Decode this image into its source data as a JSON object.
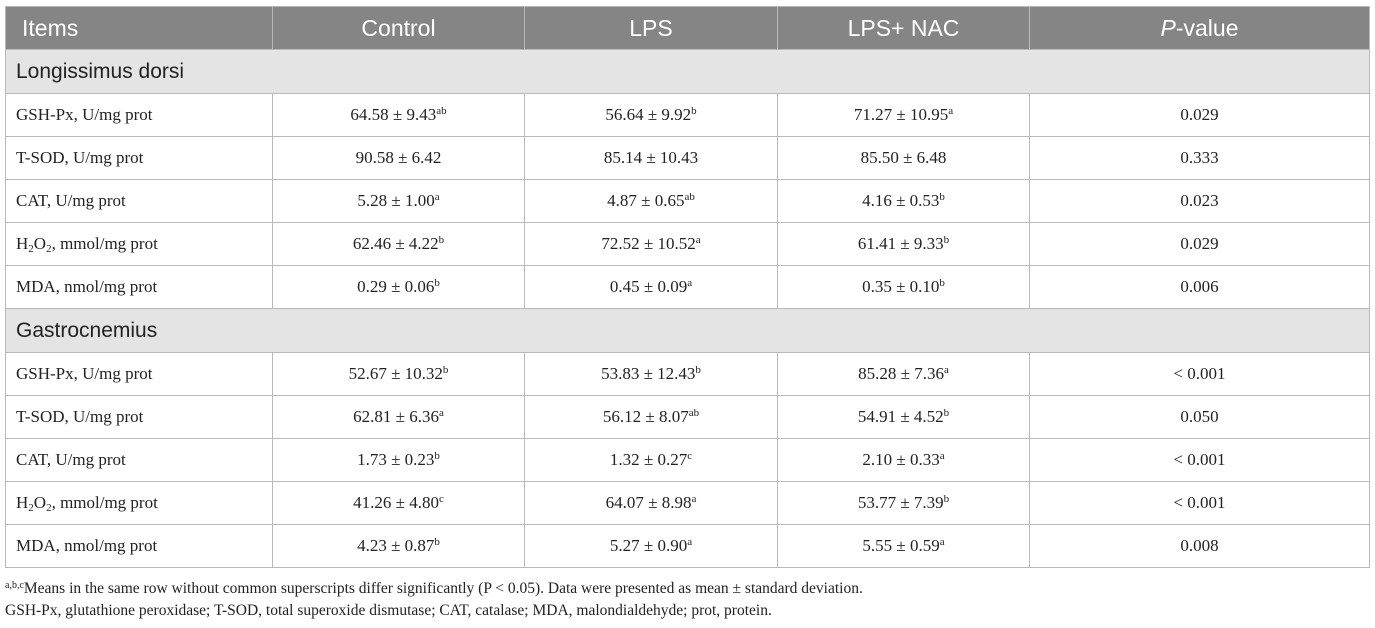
{
  "table": {
    "headers": [
      "Items",
      "Control",
      "LPS",
      "LPS+ NAC",
      "P-value"
    ],
    "groups": [
      {
        "name": "Longissimus dorsi",
        "rows": [
          {
            "item": "GSH-Px, U/mg prot",
            "control": "64.58 ± 9.43",
            "control_sup": "ab",
            "lps": "56.64 ± 9.92",
            "lps_sup": "b",
            "nac": "71.27 ± 10.95",
            "nac_sup": "a",
            "p": "0.029"
          },
          {
            "item": "T-SOD, U/mg prot",
            "control": "90.58 ± 6.42",
            "control_sup": "",
            "lps": "85.14 ± 10.43",
            "lps_sup": "",
            "nac": "85.50 ± 6.48",
            "nac_sup": "",
            "p": "0.333"
          },
          {
            "item": "CAT, U/mg prot",
            "control": "5.28 ± 1.00",
            "control_sup": "a",
            "lps": "4.87 ± 0.65",
            "lps_sup": "ab",
            "nac": "4.16 ± 0.53",
            "nac_sup": "b",
            "p": "0.023"
          },
          {
            "item": "H2O2, mmol/mg prot",
            "item_pre": "H",
            "item_sub1": "2",
            "item_mid": "O",
            "item_sub2": "2",
            "item_post": ", mmol/mg prot",
            "control": "62.46 ± 4.22",
            "control_sup": "b",
            "lps": "72.52 ± 10.52",
            "lps_sup": "a",
            "nac": "61.41 ± 9.33",
            "nac_sup": "b",
            "p": "0.029"
          },
          {
            "item": "MDA, nmol/mg prot",
            "control": "0.29 ± 0.06",
            "control_sup": "b",
            "lps": "0.45 ± 0.09",
            "lps_sup": "a",
            "nac": "0.35 ± 0.10",
            "nac_sup": "b",
            "p": "0.006"
          }
        ]
      },
      {
        "name": "Gastrocnemius",
        "rows": [
          {
            "item": "GSH-Px, U/mg prot",
            "control": "52.67 ± 10.32",
            "control_sup": "b",
            "lps": "53.83 ± 12.43",
            "lps_sup": "b",
            "nac": "85.28 ± 7.36",
            "nac_sup": "a",
            "p": "< 0.001"
          },
          {
            "item": "T-SOD, U/mg prot",
            "control": "62.81 ± 6.36",
            "control_sup": "a",
            "lps": "56.12 ± 8.07",
            "lps_sup": "ab",
            "nac": "54.91 ± 4.52",
            "nac_sup": "b",
            "p": "0.050"
          },
          {
            "item": "CAT, U/mg prot",
            "control": "1.73 ± 0.23",
            "control_sup": "b",
            "lps": "1.32 ± 0.27",
            "lps_sup": "c",
            "nac": "2.10 ± 0.33",
            "nac_sup": "a",
            "p": "< 0.001"
          },
          {
            "item": "H2O2, mmol/mg prot",
            "item_pre": "H",
            "item_sub1": "2",
            "item_mid": "O",
            "item_sub2": "2",
            "item_post": ", mmol/mg prot",
            "control": "41.26 ± 4.80",
            "control_sup": "c",
            "lps": "64.07 ± 8.98",
            "lps_sup": "a",
            "nac": "53.77 ± 7.39",
            "nac_sup": "b",
            "p": "< 0.001"
          },
          {
            "item": "MDA, nmol/mg prot",
            "control": "4.23 ± 0.87",
            "control_sup": "b",
            "lps": "5.27 ± 0.90",
            "lps_sup": "a",
            "nac": "5.55 ± 0.59",
            "nac_sup": "a",
            "p": "0.008"
          }
        ]
      }
    ]
  },
  "footnotes": {
    "sup": "a,b,c",
    "note1": "Means in the same row without common superscripts differ significantly (P < 0.05). Data were presented as mean ± standard deviation.",
    "note2": "GSH-Px, glutathione peroxidase; T-SOD, total superoxide dismutase; CAT, catalase; MDA, malondialdehyde; prot, protein."
  }
}
